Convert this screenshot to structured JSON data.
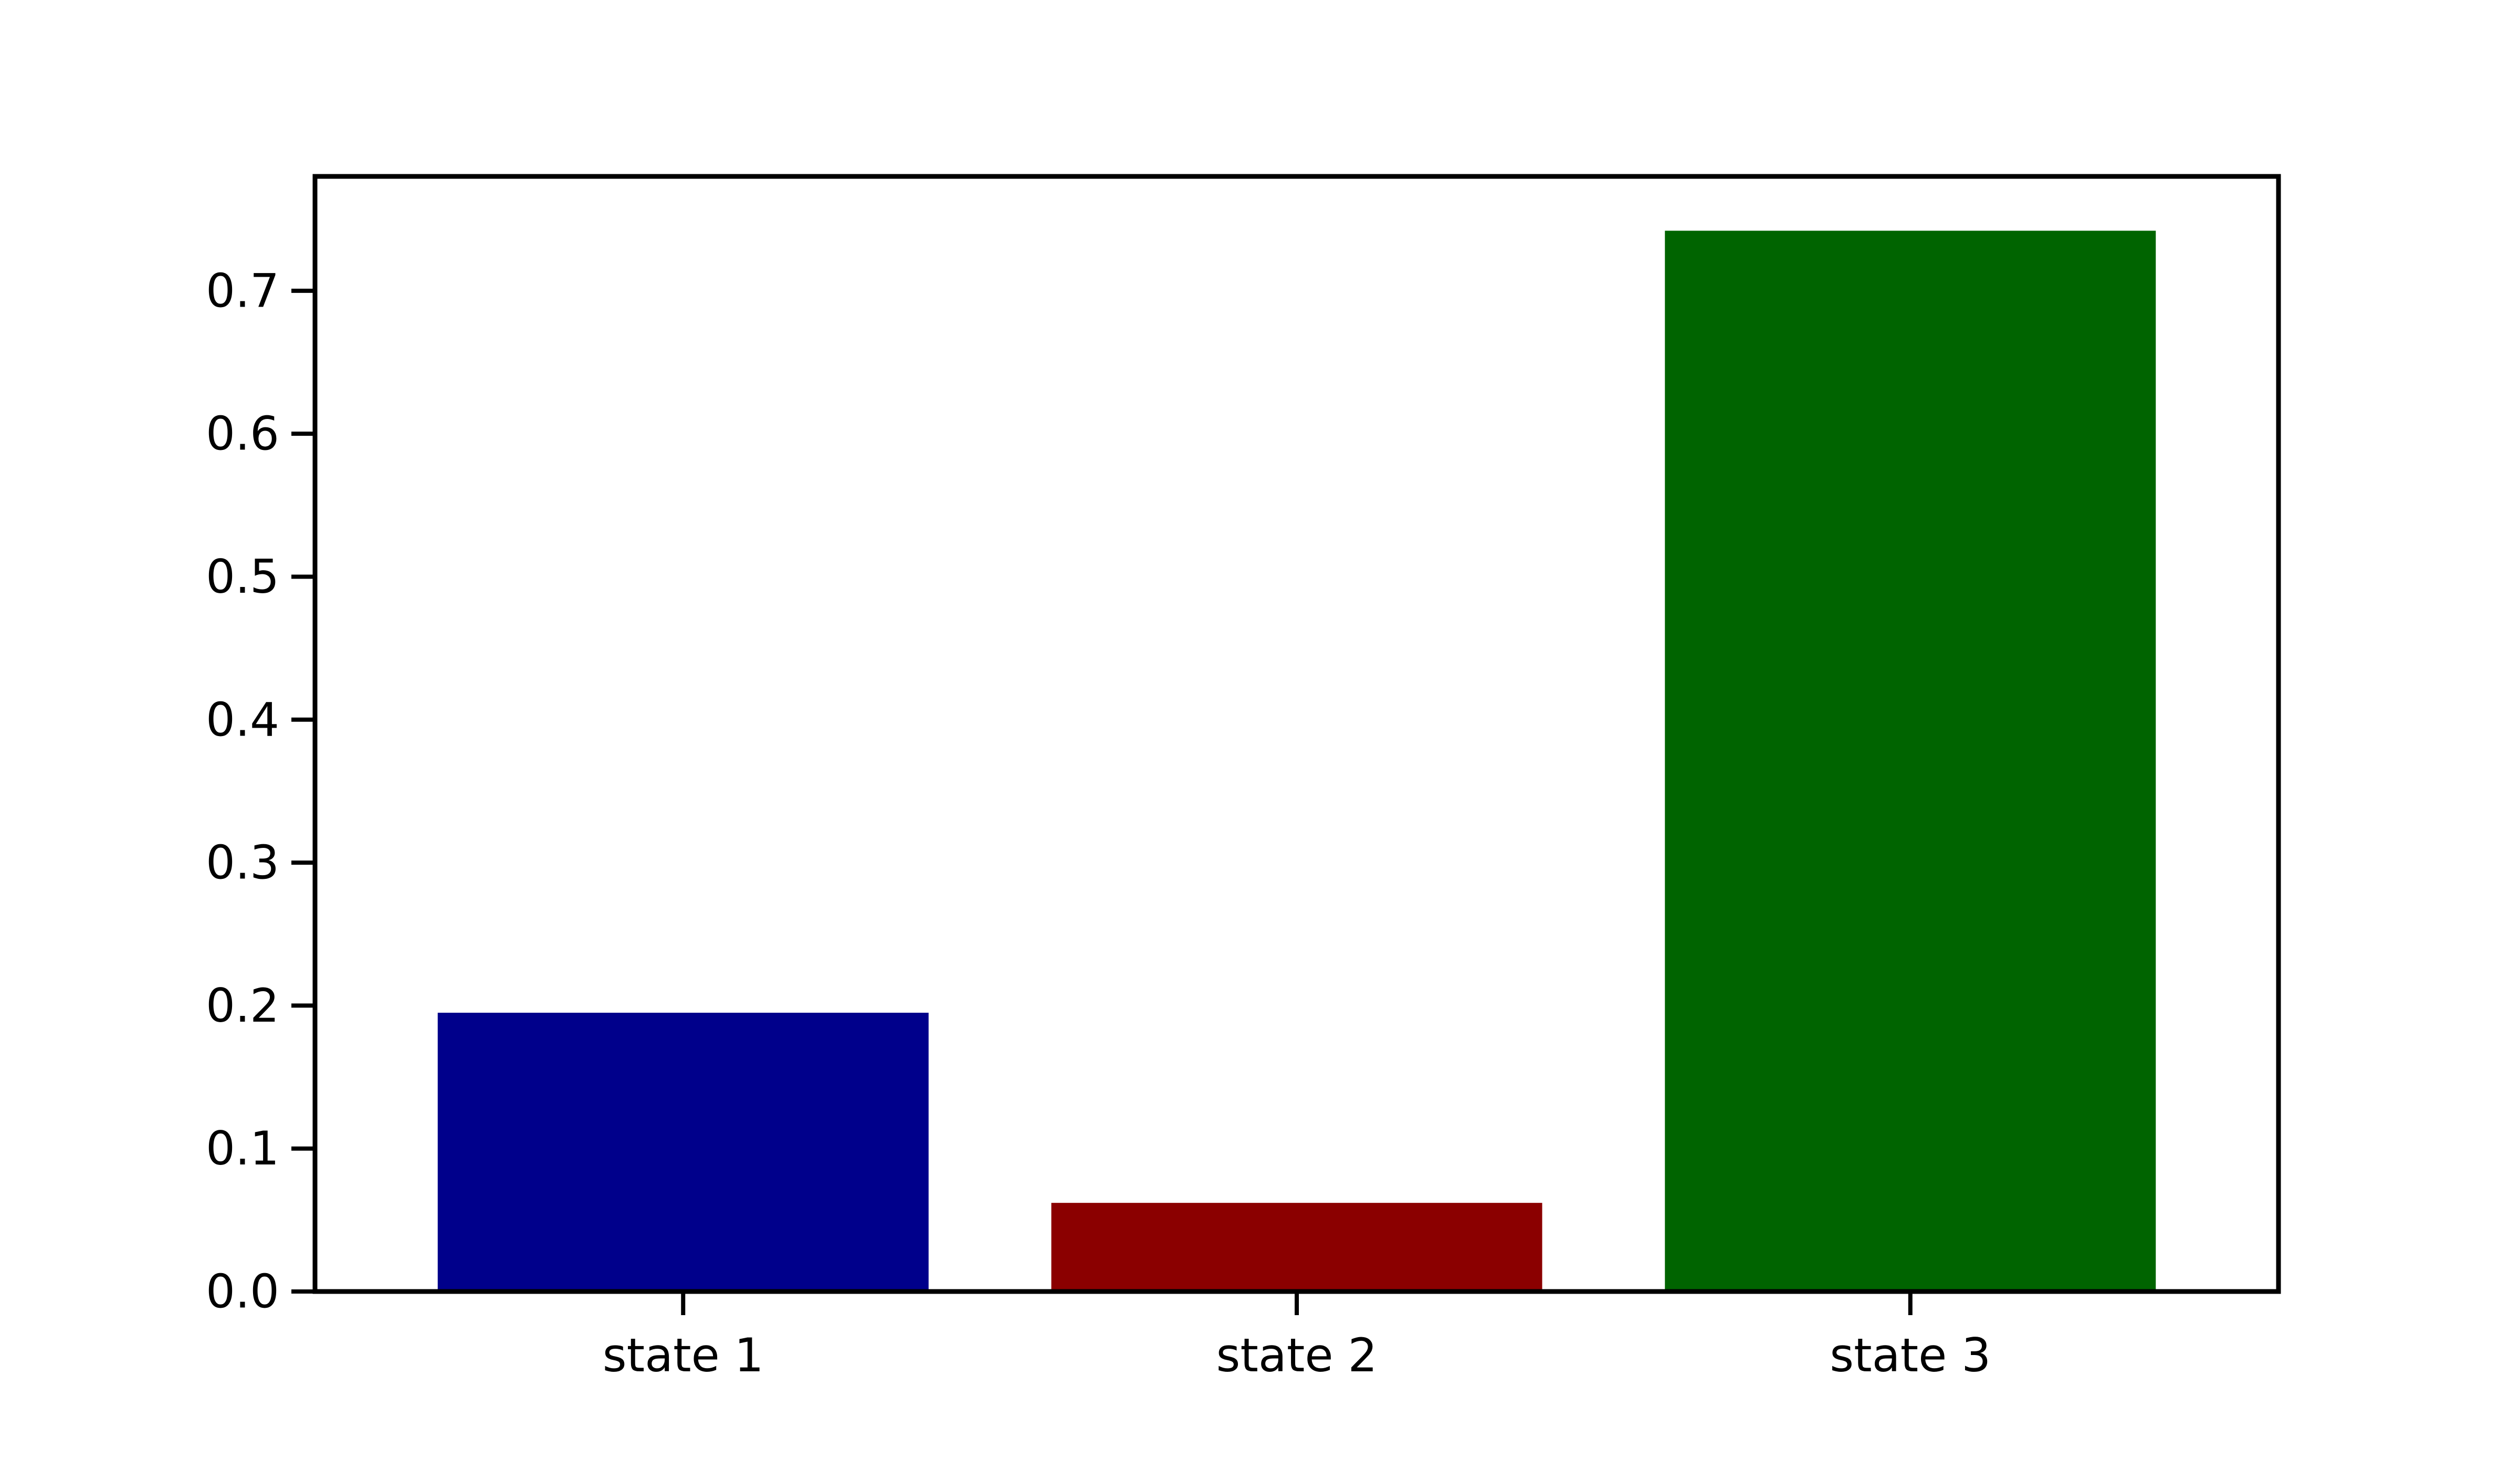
{
  "chart_data": {
    "type": "bar",
    "title": "",
    "xlabel": "",
    "ylabel": "",
    "categories": [
      "state 1",
      "state 2",
      "state 3"
    ],
    "values": [
      0.195,
      0.062,
      0.742
    ],
    "colors": [
      "#00008B",
      "#8B0000",
      "#006400"
    ],
    "ylim": [
      0,
      0.78
    ],
    "yticks": [
      0.0,
      0.1,
      0.2,
      0.3,
      0.4,
      0.5,
      0.6,
      0.7
    ],
    "ytick_labels": [
      "0.0",
      "0.1",
      "0.2",
      "0.3",
      "0.4",
      "0.5",
      "0.6",
      "0.7"
    ],
    "grid": false,
    "legend": "none"
  }
}
